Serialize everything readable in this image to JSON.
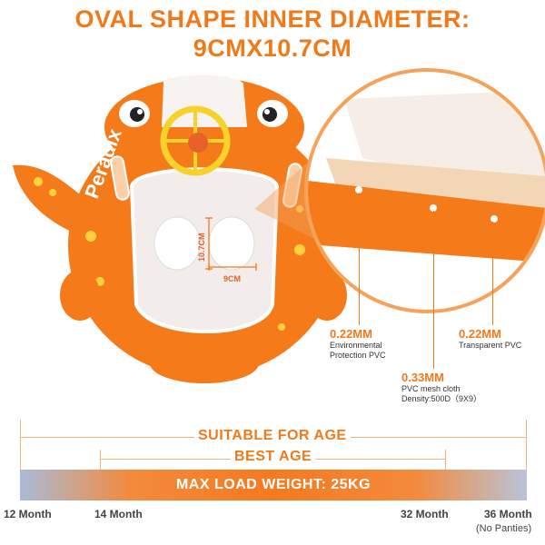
{
  "heading": {
    "line1": "OVAL SHAPE INNER DIAMETER:",
    "line2": "9CMX10.7CM"
  },
  "product": {
    "brand_text": "Peradix",
    "dim_height": "10.7CM",
    "dim_width": "9CM",
    "colors": {
      "body": "#f47a1a",
      "spots": "#ffd23a",
      "seat": "#f2ecea",
      "wheel": "#f7d22a"
    }
  },
  "specs": [
    {
      "value": "0.22MM",
      "desc": [
        "Environmental",
        "Protection PVC"
      ]
    },
    {
      "value": "0.33MM",
      "desc": [
        "PVC mesh cloth",
        "Density:500D（9X9）"
      ]
    },
    {
      "value": "0.22MM",
      "desc": [
        "Transparent PVC"
      ]
    }
  ],
  "age_scale": {
    "suitable_label": "SUITABLE FOR AGE",
    "best_label": "BEST AGE",
    "load_label": "MAX LOAD WEIGHT: 25KG",
    "ticks": [
      "12 Month",
      "14 Month",
      "32 Month",
      "36 Month"
    ],
    "note": "(No Panties)"
  },
  "colors": {
    "accent": "#f07a1a",
    "bar_edge": "#a9bbd8"
  }
}
